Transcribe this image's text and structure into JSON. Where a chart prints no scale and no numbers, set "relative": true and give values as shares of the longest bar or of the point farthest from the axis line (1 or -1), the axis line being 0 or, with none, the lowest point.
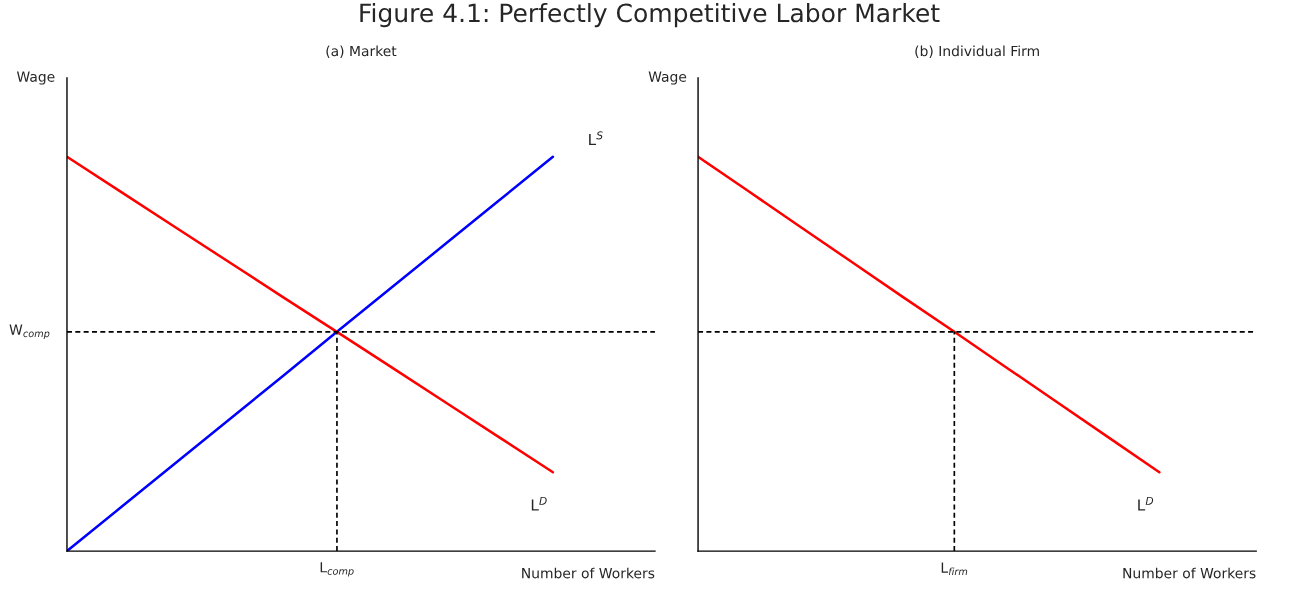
{
  "chart_data": [
    {
      "type": "line",
      "title": "Figure 4.1: Perfectly Competitive Labor Market",
      "subtitle": "(a) Market",
      "xlabel": "Number of Workers",
      "ylabel": "Wage",
      "relative": true,
      "categories": [
        null,
        null,
        null,
        null,
        null,
        null,
        null,
        null,
        null,
        null
      ],
      "series": [
        {
          "name": "L$^{S}$",
          "color": "#0000ff",
          "values": [
            0,
            0.111,
            0.222,
            0.333,
            0.444,
            0.556,
            0.667,
            0.778,
            0.889,
            1
          ]
        },
        {
          "name": "L$^{D}$",
          "color": "#ff0000",
          "values": [
            1,
            0.911,
            0.822,
            0.733,
            0.644,
            0.556,
            0.467,
            0.378,
            0.289,
            0.2
          ]
        }
      ],
      "ref_lines": [
        {
          "axis": "y",
          "value": 0.556,
          "label": "W$_{comp}$",
          "line_style": "dashed",
          "color": "#000000"
        }
      ],
      "annotations": [
        "L$_{comp}$"
      ],
      "legend": false,
      "marker": "none",
      "line_style": "solid"
    },
    {
      "type": "line",
      "subtitle": "(b) Individual Firm",
      "xlabel": "Number of Workers",
      "ylabel": "Wage",
      "relative": true,
      "categories": [
        null,
        null,
        null,
        null,
        null,
        null,
        null,
        null,
        null,
        null
      ],
      "series": [
        {
          "name": "L$^{D}$",
          "color": "#ff0000",
          "values": [
            1,
            0.911,
            0.822,
            0.733,
            0.644,
            0.556,
            0.467,
            0.378,
            0.289,
            0.2
          ]
        }
      ],
      "ref_lines": [
        {
          "axis": "y",
          "value": 0.556,
          "line_style": "dashed",
          "color": "#000000"
        }
      ],
      "annotations": [
        "L$_{firm}$"
      ],
      "legend": false,
      "marker": "none",
      "line_style": "solid"
    }
  ]
}
